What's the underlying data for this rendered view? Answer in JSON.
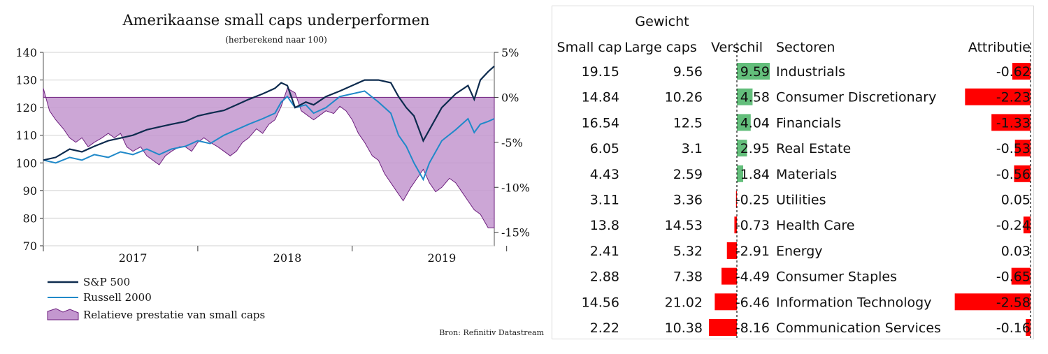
{
  "chart_data": [
    {
      "type": "line",
      "title": "Amerikaanse small caps underperformen",
      "subtitle": "(herberekend naar 100)",
      "source": "Bron: Refinitiv Datastream",
      "x_ticks": [
        "2017",
        "2018",
        "2019"
      ],
      "y_left": {
        "ticks": [
          140,
          130,
          120,
          110,
          100,
          90,
          80,
          70
        ],
        "range": [
          70,
          140
        ]
      },
      "y_right": {
        "ticks": [
          "5%",
          "0%",
          "-5%",
          "-10%",
          "-15%"
        ],
        "values": [
          5,
          0,
          -5,
          -10,
          -15
        ],
        "range": [
          -16.5,
          5
        ]
      },
      "x_range": [
        2016.5,
        2019.42
      ],
      "series": [
        {
          "name": "S&P 500",
          "color": "#0d2b4e",
          "axis": "left",
          "x": [
            2016.5,
            2016.58,
            2016.67,
            2016.75,
            2016.83,
            2016.92,
            2017.0,
            2017.08,
            2017.17,
            2017.25,
            2017.33,
            2017.42,
            2017.5,
            2017.58,
            2017.67,
            2017.75,
            2017.83,
            2017.92,
            2018.0,
            2018.04,
            2018.08,
            2018.13,
            2018.2,
            2018.25,
            2018.33,
            2018.42,
            2018.5,
            2018.58,
            2018.67,
            2018.75,
            2018.8,
            2018.85,
            2018.9,
            2018.96,
            2019.0,
            2019.08,
            2019.17,
            2019.25,
            2019.29,
            2019.33,
            2019.38,
            2019.42
          ],
          "y": [
            101,
            102,
            105,
            104,
            106,
            108,
            109,
            110,
            112,
            113,
            114,
            115,
            117,
            118,
            119,
            121,
            123,
            125,
            127,
            129,
            128,
            120,
            122,
            121,
            124,
            126,
            128,
            130,
            130,
            129,
            124,
            120,
            117,
            108,
            112,
            120,
            125,
            128,
            123,
            130,
            133,
            135
          ]
        },
        {
          "name": "Russell 2000",
          "color": "#2089c9",
          "axis": "left",
          "x": [
            2016.5,
            2016.58,
            2016.67,
            2016.75,
            2016.83,
            2016.92,
            2017.0,
            2017.08,
            2017.17,
            2017.25,
            2017.33,
            2017.42,
            2017.5,
            2017.58,
            2017.67,
            2017.75,
            2017.83,
            2017.92,
            2018.0,
            2018.04,
            2018.08,
            2018.13,
            2018.2,
            2018.25,
            2018.33,
            2018.42,
            2018.5,
            2018.58,
            2018.67,
            2018.75,
            2018.8,
            2018.85,
            2018.9,
            2018.96,
            2019.0,
            2019.08,
            2019.17,
            2019.25,
            2019.29,
            2019.33,
            2019.38,
            2019.42
          ],
          "y": [
            101,
            100,
            102,
            101,
            103,
            102,
            104,
            103,
            105,
            103,
            105,
            106,
            108,
            107,
            110,
            112,
            114,
            116,
            118,
            122,
            124,
            120,
            121,
            118,
            120,
            124,
            125,
            126,
            122,
            118,
            110,
            106,
            100,
            94,
            100,
            108,
            112,
            116,
            111,
            114,
            115,
            116
          ]
        },
        {
          "name": "Relatieve prestatie van small caps",
          "color": "#c397cf",
          "stroke": "#6d1f7e",
          "axis": "right",
          "type": "area",
          "x": [
            2016.5,
            2016.54,
            2016.58,
            2016.63,
            2016.67,
            2016.71,
            2016.75,
            2016.79,
            2016.83,
            2016.88,
            2016.92,
            2016.96,
            2017.0,
            2017.04,
            2017.08,
            2017.13,
            2017.17,
            2017.21,
            2017.25,
            2017.29,
            2017.33,
            2017.38,
            2017.42,
            2017.46,
            2017.5,
            2017.54,
            2017.58,
            2017.63,
            2017.67,
            2017.71,
            2017.75,
            2017.79,
            2017.83,
            2017.88,
            2017.92,
            2017.96,
            2018.0,
            2018.04,
            2018.08,
            2018.13,
            2018.17,
            2018.21,
            2018.25,
            2018.29,
            2018.33,
            2018.38,
            2018.42,
            2018.46,
            2018.5,
            2018.54,
            2018.58,
            2018.63,
            2018.67,
            2018.71,
            2018.75,
            2018.79,
            2018.83,
            2018.88,
            2018.92,
            2018.96,
            2019.0,
            2019.04,
            2019.08,
            2019.13,
            2019.17,
            2019.21,
            2019.25,
            2019.29,
            2019.33,
            2019.38,
            2019.42
          ],
          "y": [
            1.0,
            -1.5,
            -2.5,
            -3.5,
            -4.5,
            -5.0,
            -4.5,
            -5.5,
            -5.0,
            -4.5,
            -4.0,
            -4.5,
            -4.0,
            -5.5,
            -6.0,
            -5.5,
            -6.5,
            -7.0,
            -7.5,
            -6.5,
            -6.0,
            -5.5,
            -5.5,
            -6.0,
            -5.0,
            -4.5,
            -5.0,
            -5.5,
            -6.0,
            -6.5,
            -6.0,
            -5.0,
            -4.5,
            -3.5,
            -4.0,
            -3.0,
            -2.5,
            -1.0,
            1.0,
            0.5,
            -1.5,
            -2.0,
            -2.5,
            -2.0,
            -1.5,
            -1.8,
            -1.0,
            -1.5,
            -2.5,
            -4.0,
            -5.0,
            -6.5,
            -7.0,
            -8.5,
            -9.5,
            -10.5,
            -11.5,
            -10.0,
            -9.0,
            -8.0,
            -9.5,
            -10.5,
            -10.0,
            -9.0,
            -9.5,
            -10.5,
            -11.5,
            -12.5,
            -13.0,
            -14.5,
            -14.5
          ]
        }
      ]
    },
    {
      "type": "table",
      "headers": {
        "gewicht": "Gewicht",
        "small": "Small cap",
        "large": "Large caps",
        "verschil": "Verschil",
        "sector": "Sectoren",
        "attributie": "Attributie"
      },
      "colors": {
        "positive": "#63be7b",
        "negative": "#ff0000"
      },
      "rows": [
        {
          "small": "19.15",
          "large": "9.56",
          "verschil": "9.59",
          "sector": "Industrials",
          "attributie": "-0.62"
        },
        {
          "small": "14.84",
          "large": "10.26",
          "verschil": "4.58",
          "sector": "Consumer Discretionary",
          "attributie": "-2.23"
        },
        {
          "small": "16.54",
          "large": "12.5",
          "verschil": "4.04",
          "sector": "Financials",
          "attributie": "-1.33"
        },
        {
          "small": "6.05",
          "large": "3.1",
          "verschil": "2.95",
          "sector": "Real Estate",
          "attributie": "-0.53"
        },
        {
          "small": "4.43",
          "large": "2.59",
          "verschil": "1.84",
          "sector": "Materials",
          "attributie": "-0.56"
        },
        {
          "small": "3.11",
          "large": "3.36",
          "verschil": "-0.25",
          "sector": "Utilities",
          "attributie": "0.05"
        },
        {
          "small": "13.8",
          "large": "14.53",
          "verschil": "-0.73",
          "sector": "Health Care",
          "attributie": "-0.24"
        },
        {
          "small": "2.41",
          "large": "5.32",
          "verschil": "-2.91",
          "sector": "Energy",
          "attributie": "0.03"
        },
        {
          "small": "2.88",
          "large": "7.38",
          "verschil": "-4.49",
          "sector": "Consumer Staples",
          "attributie": "-0.65"
        },
        {
          "small": "14.56",
          "large": "21.02",
          "verschil": "-6.46",
          "sector": "Information Technology",
          "attributie": "-2.58"
        },
        {
          "small": "2.22",
          "large": "10.38",
          "verschil": "-8.16",
          "sector": "Communication Services",
          "attributie": "-0.16"
        }
      ]
    }
  ]
}
